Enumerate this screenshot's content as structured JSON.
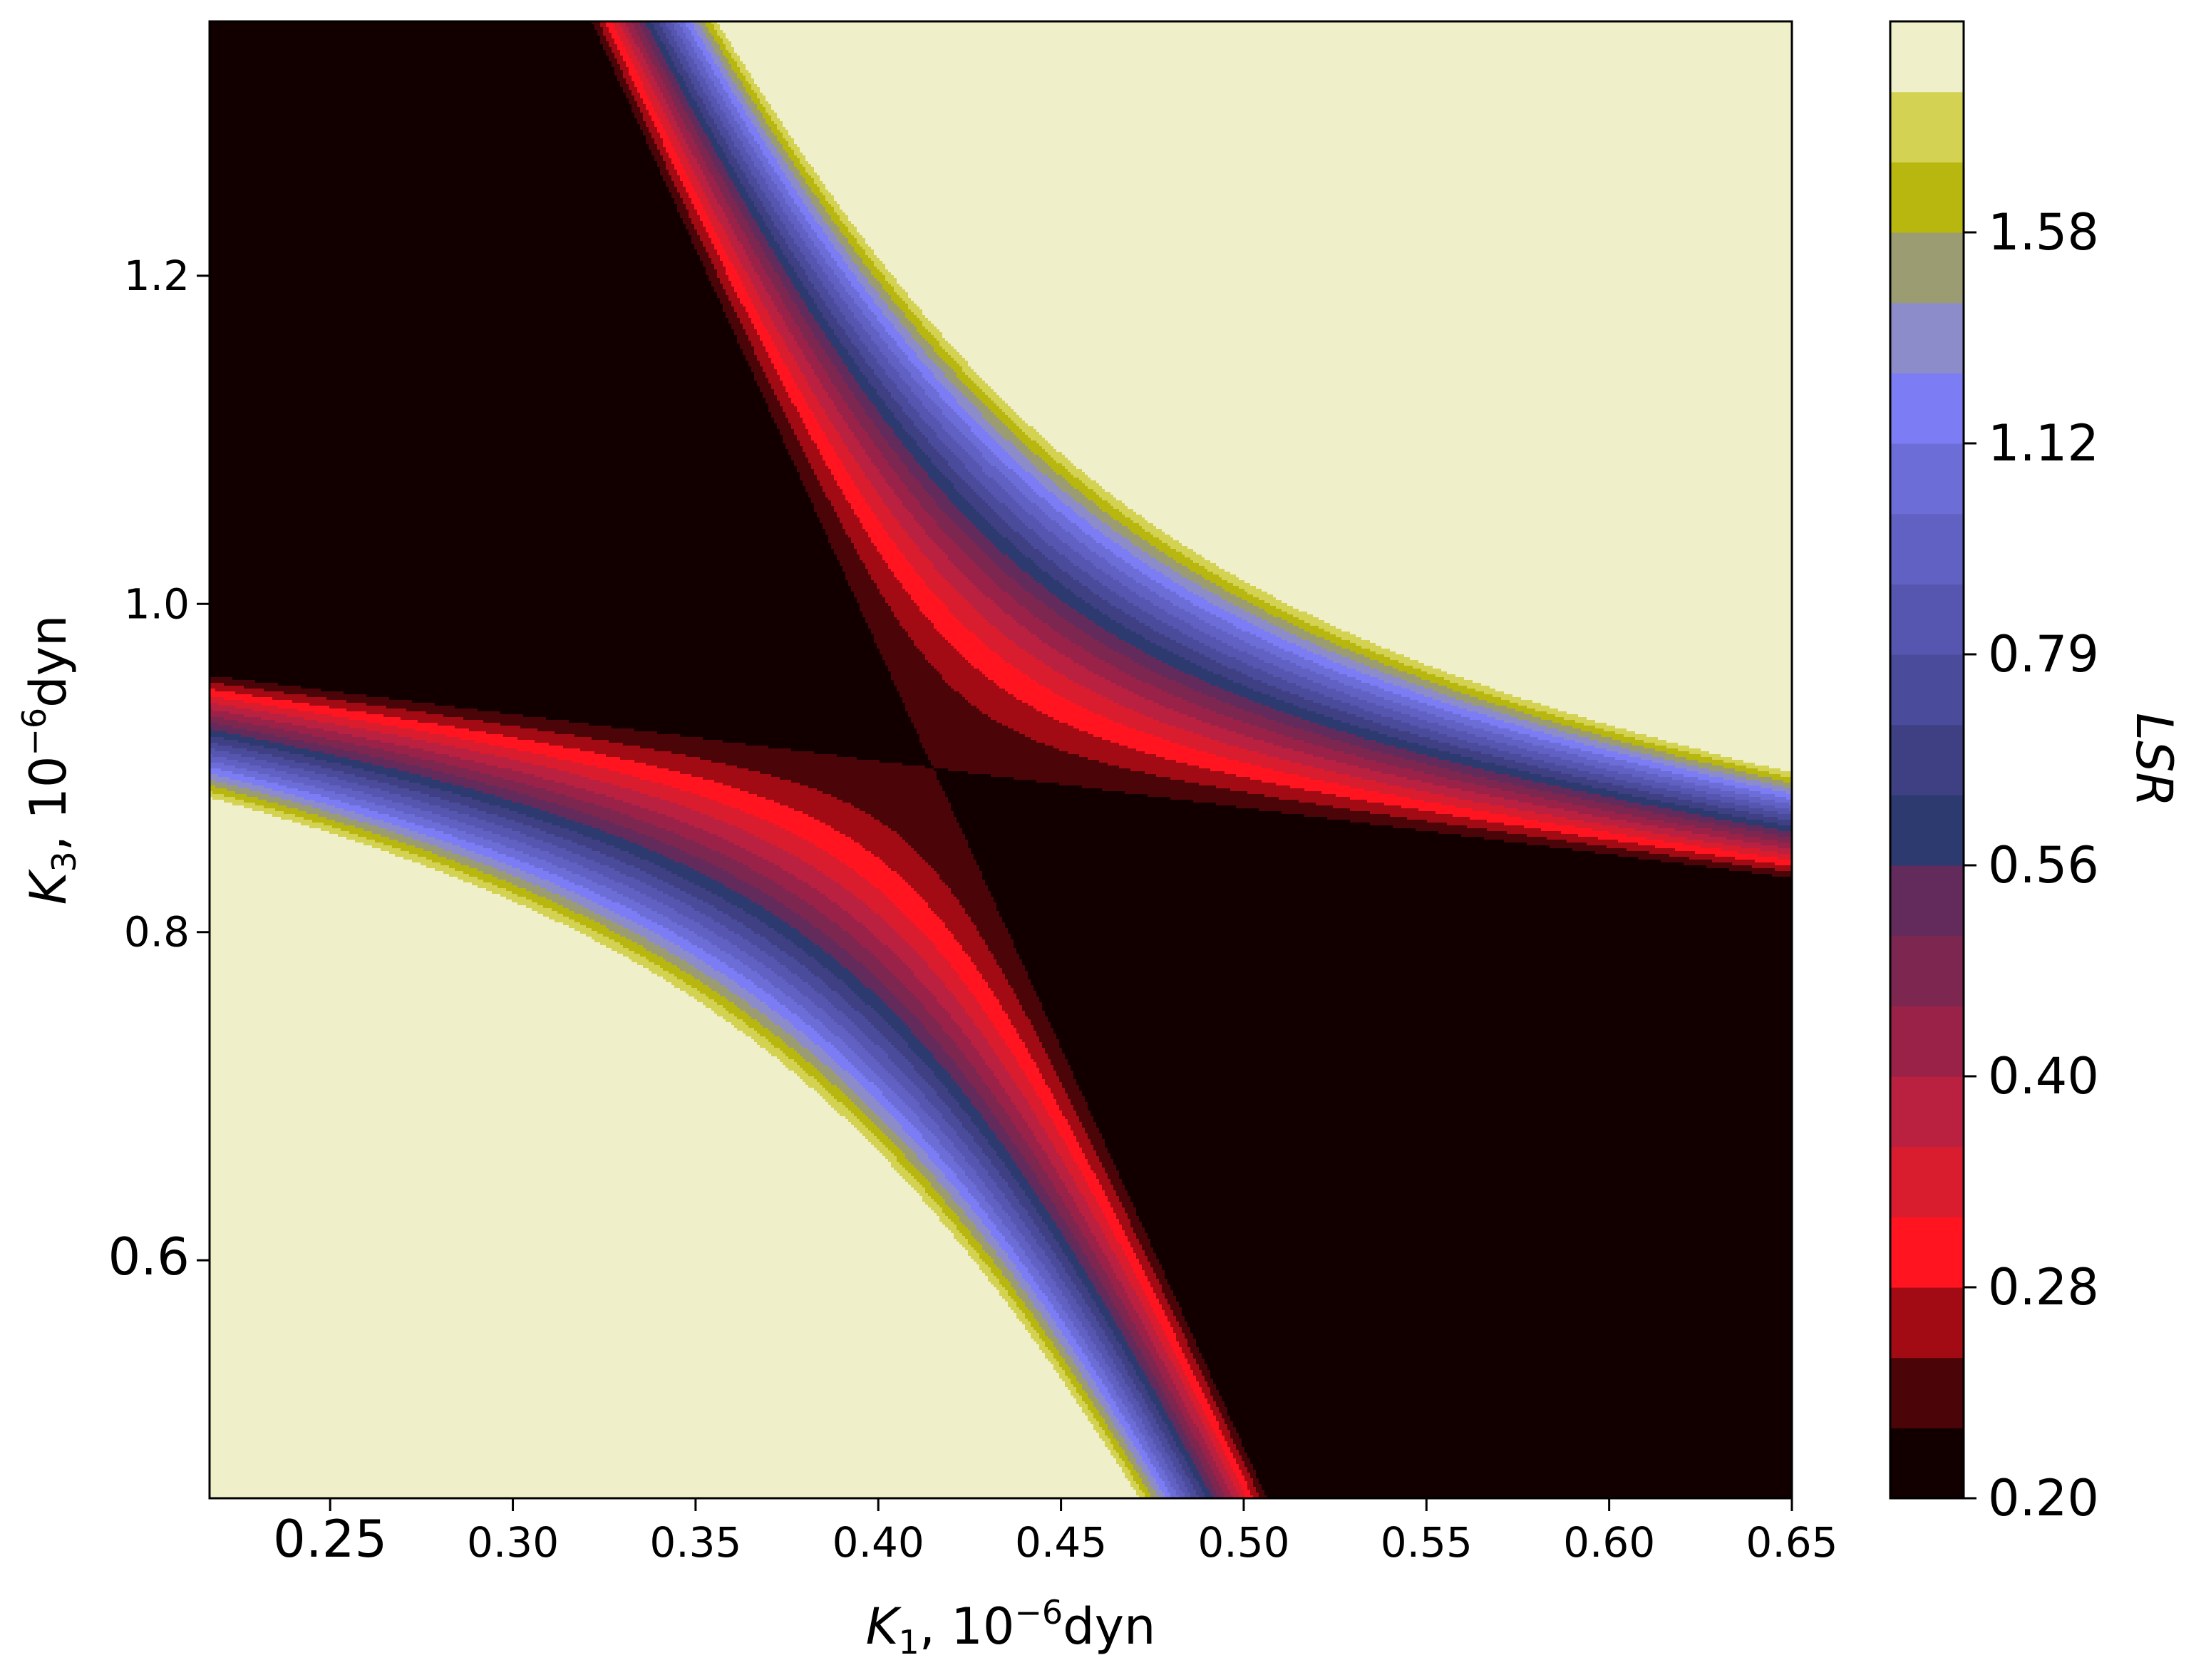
{
  "chart_data": {
    "type": "contour",
    "title": "",
    "xlabel": "K1, 10^-6 dyn",
    "ylabel": "K3, 10^-6 dyn",
    "colorbar_label": "LSR",
    "x_ticks": [
      "0.25",
      "0.30",
      "0.35",
      "0.40",
      "0.45",
      "0.50",
      "0.55",
      "0.60",
      "0.65"
    ],
    "x_tick_values": [
      0.25,
      0.3,
      0.35,
      0.4,
      0.45,
      0.5,
      0.55,
      0.6,
      0.65
    ],
    "y_ticks": [
      "0.6",
      "0.8",
      "1.0",
      "1.2"
    ],
    "y_tick_values": [
      0.6,
      0.8,
      1.0,
      1.2
    ],
    "colorbar_ticks": [
      "0.20",
      "0.28",
      "0.40",
      "0.56",
      "0.79",
      "1.12",
      "1.58"
    ],
    "xlim": [
      0.217,
      0.65
    ],
    "ylim": [
      0.455,
      1.355
    ],
    "minimum": {
      "x": 0.415,
      "y": 0.9,
      "value": 0.2
    },
    "contour_levels": [
      0.2,
      0.224,
      0.251,
      0.282,
      0.316,
      0.355,
      0.398,
      0.447,
      0.501,
      0.562,
      0.631,
      0.708,
      0.794,
      0.891,
      1.0,
      1.122,
      1.259,
      1.413,
      1.585,
      1.778
    ],
    "level_colors": [
      "#120000",
      "#4b0408",
      "#a30b14",
      "#ff1420",
      "#d91c2e",
      "#ba2040",
      "#9a2248",
      "#7c2650",
      "#622b5c",
      "#2c3a70",
      "#3f3f84",
      "#4b4b9c",
      "#5656b1",
      "#6161c4",
      "#6d6dd8",
      "#7c7cf4",
      "#8d8ccb",
      "#9c9c72",
      "#b8b70f",
      "#d3d252",
      "#eff0c9"
    ],
    "colormap": "custom black-red-blue-yellow"
  }
}
